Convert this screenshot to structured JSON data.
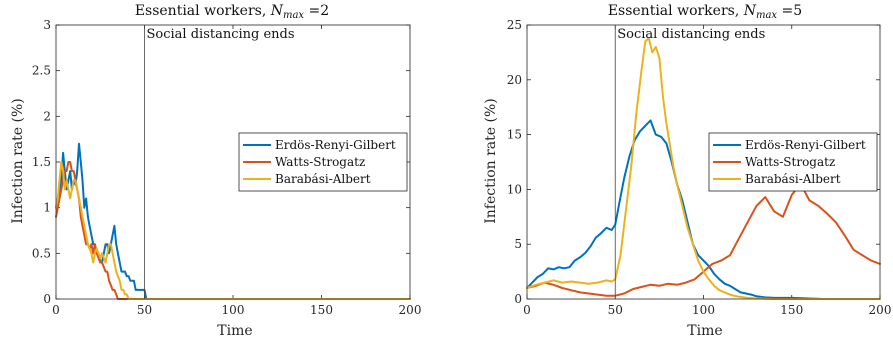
{
  "chart_data": [
    {
      "type": "line",
      "title_main": "Essential workers, ",
      "title_var": "N",
      "title_sub": "max",
      "title_value": " =2",
      "xlabel": "Time",
      "ylabel": "Infection rate (%)",
      "xlim": [
        0,
        200
      ],
      "ylim": [
        0,
        3
      ],
      "xticks": [
        0,
        50,
        100,
        150,
        200
      ],
      "yticks": [
        0,
        0.5,
        1,
        1.5,
        2,
        2.5,
        3
      ],
      "ytick_labels": [
        "0",
        "0.5",
        "1",
        "1.5",
        "2",
        "2.5",
        "3"
      ],
      "grid": false,
      "legend_position": "center-right",
      "annotation": {
        "x": 50,
        "text": "Social distancing ends"
      },
      "series": [
        {
          "name": "Erdös-Renyi-Gilbert",
          "color": "#0072BD",
          "x": [
            0,
            1,
            2,
            3,
            4,
            5,
            6,
            7,
            8,
            9,
            10,
            11,
            12,
            13,
            14,
            15,
            16,
            17,
            18,
            19,
            20,
            21,
            22,
            23,
            24,
            25,
            26,
            27,
            28,
            29,
            30,
            31,
            32,
            33,
            34,
            35,
            36,
            37,
            38,
            39,
            40,
            41,
            42,
            43,
            44,
            45,
            46,
            47,
            48,
            49,
            50,
            51,
            200
          ],
          "y": [
            1.0,
            1.1,
            1.2,
            1.3,
            1.6,
            1.4,
            1.2,
            1.3,
            1.4,
            1.2,
            1.3,
            1.25,
            1.4,
            1.7,
            1.5,
            1.3,
            1.0,
            1.1,
            0.9,
            0.8,
            0.7,
            0.6,
            0.6,
            0.5,
            0.5,
            0.4,
            0.4,
            0.5,
            0.6,
            0.6,
            0.5,
            0.6,
            0.7,
            0.8,
            0.6,
            0.5,
            0.4,
            0.3,
            0.3,
            0.3,
            0.25,
            0.25,
            0.2,
            0.2,
            0.2,
            0.1,
            0.1,
            0.1,
            0.1,
            0.1,
            0.1,
            0.0,
            0.0
          ]
        },
        {
          "name": "Watts-Strogatz",
          "color": "#D95319",
          "x": [
            0,
            1,
            2,
            3,
            4,
            5,
            6,
            7,
            8,
            9,
            10,
            11,
            12,
            13,
            14,
            15,
            16,
            17,
            18,
            19,
            20,
            21,
            22,
            23,
            24,
            25,
            26,
            27,
            28,
            29,
            30,
            31,
            32,
            33,
            34,
            35,
            36,
            37,
            200
          ],
          "y": [
            0.9,
            1.0,
            1.1,
            1.2,
            1.3,
            1.4,
            1.4,
            1.5,
            1.5,
            1.4,
            1.4,
            1.3,
            1.2,
            1.1,
            0.9,
            0.8,
            0.7,
            0.6,
            0.6,
            0.55,
            0.6,
            0.5,
            0.6,
            0.5,
            0.45,
            0.4,
            0.4,
            0.35,
            0.3,
            0.3,
            0.2,
            0.15,
            0.1,
            0.1,
            0.05,
            0.0,
            0.0,
            0.0,
            0.0
          ]
        },
        {
          "name": "Barabási-Albert",
          "color": "#EDB120",
          "x": [
            0,
            1,
            2,
            3,
            4,
            5,
            6,
            7,
            8,
            9,
            10,
            11,
            12,
            13,
            14,
            15,
            16,
            17,
            18,
            19,
            20,
            21,
            22,
            23,
            24,
            25,
            26,
            27,
            28,
            29,
            30,
            31,
            32,
            33,
            34,
            35,
            36,
            37,
            38,
            39,
            40,
            41,
            42,
            200
          ],
          "y": [
            1.0,
            1.1,
            1.3,
            1.5,
            1.4,
            1.2,
            1.3,
            1.2,
            1.1,
            1.2,
            1.3,
            1.3,
            1.2,
            1.1,
            1.0,
            0.9,
            0.8,
            0.7,
            0.6,
            0.55,
            0.5,
            0.4,
            0.5,
            0.55,
            0.5,
            0.45,
            0.5,
            0.45,
            0.4,
            0.5,
            0.6,
            0.6,
            0.5,
            0.4,
            0.3,
            0.25,
            0.2,
            0.1,
            0.1,
            0.05,
            0.05,
            0.0,
            0.0,
            0.0
          ]
        }
      ]
    },
    {
      "type": "line",
      "title_main": "Essential workers, ",
      "title_var": "N",
      "title_sub": "max",
      "title_value": " =5",
      "xlabel": "Time",
      "ylabel": "Infection rate (%)",
      "xlim": [
        0,
        200
      ],
      "ylim": [
        0,
        25
      ],
      "xticks": [
        0,
        50,
        100,
        150,
        200
      ],
      "yticks": [
        0,
        5,
        10,
        15,
        20,
        25
      ],
      "ytick_labels": [
        "0",
        "5",
        "10",
        "15",
        "20",
        "25"
      ],
      "grid": false,
      "legend_position": "center-right",
      "annotation": {
        "x": 50,
        "text": "Social distancing ends"
      },
      "series": [
        {
          "name": "Erdös-Renyi-Gilbert",
          "color": "#0072BD",
          "x": [
            0,
            3,
            6,
            9,
            12,
            15,
            18,
            21,
            24,
            27,
            30,
            33,
            36,
            39,
            42,
            45,
            48,
            50,
            52,
            55,
            58,
            61,
            64,
            67,
            70,
            73,
            76,
            79,
            82,
            85,
            88,
            91,
            94,
            97,
            100,
            103,
            106,
            109,
            112,
            115,
            118,
            121,
            124,
            127,
            130,
            135,
            140,
            150,
            160,
            168
          ],
          "y": [
            1.0,
            1.5,
            2.0,
            2.3,
            2.8,
            2.7,
            2.9,
            2.8,
            2.9,
            3.5,
            3.8,
            4.2,
            4.8,
            5.6,
            6.0,
            6.5,
            6.3,
            6.8,
            8.5,
            11.0,
            13.0,
            14.5,
            15.3,
            15.8,
            16.3,
            15.0,
            14.8,
            14.2,
            12.5,
            10.5,
            9.0,
            7.0,
            5.0,
            4.0,
            3.5,
            3.0,
            2.3,
            1.8,
            1.4,
            1.2,
            0.9,
            0.6,
            0.5,
            0.4,
            0.25,
            0.15,
            0.1,
            0.1,
            0.05,
            0.0
          ]
        },
        {
          "name": "Watts-Strogatz",
          "color": "#D95319",
          "x": [
            0,
            5,
            10,
            15,
            20,
            25,
            30,
            35,
            40,
            45,
            50,
            55,
            60,
            65,
            70,
            75,
            80,
            85,
            90,
            95,
            100,
            105,
            110,
            115,
            120,
            125,
            130,
            135,
            140,
            145,
            150,
            155,
            160,
            165,
            170,
            175,
            180,
            185,
            190,
            195,
            200
          ],
          "y": [
            1.0,
            1.2,
            1.5,
            1.3,
            1.0,
            0.8,
            0.6,
            0.5,
            0.4,
            0.3,
            0.3,
            0.5,
            0.9,
            1.1,
            1.3,
            1.2,
            1.4,
            1.3,
            1.5,
            1.8,
            2.5,
            3.2,
            3.5,
            4.0,
            5.5,
            7.0,
            8.5,
            9.3,
            8.0,
            7.5,
            9.5,
            10.5,
            9.0,
            8.5,
            7.8,
            7.0,
            5.8,
            4.5,
            4.0,
            3.5,
            3.2
          ]
        },
        {
          "name": "Barabási-Albert",
          "color": "#EDB120",
          "x": [
            0,
            5,
            10,
            15,
            20,
            25,
            30,
            35,
            40,
            45,
            48,
            50,
            53,
            56,
            59,
            62,
            65,
            67,
            69,
            71,
            73,
            75,
            77,
            79,
            81,
            83,
            85,
            88,
            91,
            94,
            97,
            100,
            103,
            106,
            109,
            112,
            115,
            120,
            125,
            130,
            140,
            150,
            160,
            170,
            180,
            190,
            200
          ],
          "y": [
            1.0,
            1.3,
            1.5,
            1.7,
            1.5,
            1.6,
            1.5,
            1.4,
            1.5,
            1.7,
            1.6,
            1.8,
            4.0,
            8.0,
            12.0,
            17.0,
            21.0,
            23.5,
            23.8,
            22.5,
            23.0,
            22.0,
            18.5,
            16.0,
            14.0,
            12.0,
            10.5,
            8.5,
            6.5,
            5.0,
            3.5,
            2.5,
            1.8,
            1.2,
            0.8,
            0.6,
            0.4,
            0.2,
            0.1,
            0.05,
            0.0,
            0.0,
            0.0,
            0.0,
            0.0,
            0.0,
            0.0
          ]
        }
      ]
    }
  ]
}
